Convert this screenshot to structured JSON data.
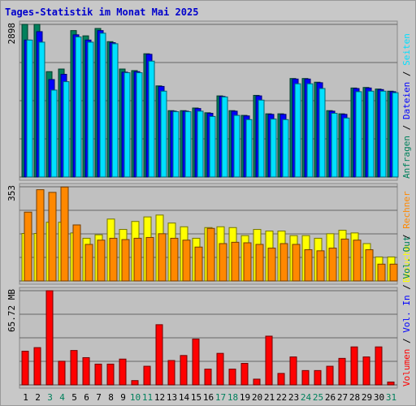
{
  "title": "Tages-Statistik im Monat Mai 2025",
  "colors": {
    "title": "#0000cc",
    "hits": "#00805c",
    "files": "#0000ff",
    "pages": "#00e0ff",
    "visits": "#ffff00",
    "sites": "#ff8800",
    "kbytes": "#ff0000",
    "grid": "#666666",
    "panel": "#c0c0c0",
    "weekend_label": "#00805c",
    "weekday_label": "#000000"
  },
  "chart_data": [
    {
      "type": "bar",
      "panel": "top",
      "ymax_label": "2898",
      "ylim": [
        0,
        2898
      ],
      "categories": [
        "1",
        "2",
        "3",
        "4",
        "5",
        "6",
        "7",
        "8",
        "9",
        "10",
        "11",
        "12",
        "13",
        "14",
        "15",
        "16",
        "17",
        "18",
        "19",
        "20",
        "21",
        "22",
        "23",
        "24",
        "25",
        "26",
        "27",
        "28",
        "29",
        "30",
        "31"
      ],
      "series": [
        {
          "name": "Anfragen",
          "color": "#00805c",
          "values": [
            2898,
            2898,
            2000,
            2050,
            2780,
            2680,
            2820,
            2570,
            2050,
            2020,
            2340,
            1730,
            1260,
            1260,
            1310,
            1220,
            1540,
            1260,
            1170,
            1550,
            1200,
            1200,
            1870,
            1870,
            1800,
            1260,
            1200,
            1690,
            1700,
            1670,
            1630
          ]
        },
        {
          "name": "Dateien",
          "color": "#0000ff",
          "values": [
            2600,
            2760,
            1850,
            1950,
            2700,
            2600,
            2780,
            2550,
            1990,
            2000,
            2330,
            1720,
            1250,
            1250,
            1300,
            1210,
            1530,
            1250,
            1160,
            1540,
            1190,
            1190,
            1860,
            1860,
            1790,
            1250,
            1190,
            1680,
            1690,
            1660,
            1620
          ]
        },
        {
          "name": "Seiten",
          "color": "#00e0ff",
          "values": [
            2600,
            2560,
            1650,
            1810,
            2660,
            2560,
            2730,
            2530,
            1980,
            1980,
            2200,
            1630,
            1240,
            1240,
            1250,
            1150,
            1520,
            1170,
            1090,
            1460,
            1100,
            1090,
            1770,
            1770,
            1680,
            1210,
            1120,
            1620,
            1630,
            1630,
            1600
          ]
        }
      ]
    },
    {
      "type": "bar",
      "panel": "middle",
      "ymax_label": "353",
      "ylim": [
        0,
        353
      ],
      "categories": [
        "1",
        "2",
        "3",
        "4",
        "5",
        "6",
        "7",
        "8",
        "9",
        "10",
        "11",
        "12",
        "13",
        "14",
        "15",
        "16",
        "17",
        "18",
        "19",
        "20",
        "21",
        "22",
        "23",
        "24",
        "25",
        "26",
        "27",
        "28",
        "29",
        "30",
        "31"
      ],
      "series": [
        {
          "name": "Besuche",
          "color": "#ffff00",
          "values": [
            178,
            178,
            220,
            220,
            180,
            160,
            173,
            232,
            193,
            223,
            240,
            247,
            217,
            203,
            160,
            200,
            203,
            200,
            170,
            193,
            187,
            187,
            170,
            170,
            160,
            177,
            190,
            180,
            140,
            90,
            90
          ]
        },
        {
          "name": "Rechner",
          "color": "#ff8800",
          "values": [
            258,
            342,
            332,
            352,
            210,
            137,
            153,
            160,
            155,
            160,
            163,
            177,
            160,
            153,
            127,
            197,
            140,
            145,
            143,
            137,
            123,
            140,
            137,
            117,
            113,
            123,
            157,
            153,
            117,
            63,
            63
          ]
        }
      ]
    },
    {
      "type": "bar",
      "panel": "bottom",
      "ymax_label": "65.72 MB",
      "ylim": [
        0,
        65.72
      ],
      "categories": [
        "1",
        "2",
        "3",
        "4",
        "5",
        "6",
        "7",
        "8",
        "9",
        "10",
        "11",
        "12",
        "13",
        "14",
        "15",
        "16",
        "17",
        "18",
        "19",
        "20",
        "21",
        "22",
        "23",
        "24",
        "25",
        "26",
        "27",
        "28",
        "29",
        "30",
        "31"
      ],
      "series": [
        {
          "name": "Volumen",
          "color": "#ff0000",
          "values": [
            23.5,
            26,
            65.72,
            16.5,
            24,
            19,
            14.5,
            14.5,
            18,
            3,
            13,
            42,
            17,
            20.5,
            32,
            11,
            22,
            11,
            15,
            4,
            34,
            8,
            19.5,
            10,
            10,
            13,
            18.5,
            26.5,
            19.5,
            26.5,
            2
          ]
        }
      ]
    }
  ],
  "legend": {
    "top": [
      {
        "label": "Anfragen",
        "color": "#00805c"
      },
      {
        "label": "Dateien",
        "color": "#0000ff"
      },
      {
        "label": "Seiten",
        "color": "#00e0ff"
      }
    ],
    "middle": [
      {
        "label": "Besuche",
        "color": "#ffff00"
      },
      {
        "label": "Rechner",
        "color": "#ff8800"
      }
    ],
    "bottom": [
      {
        "label": "Volumen",
        "color": "#ff0000"
      },
      {
        "label": "Vol. In",
        "color": "#0000ff"
      },
      {
        "label": "Vol. Out",
        "color": "#00805c"
      }
    ]
  },
  "weekend_days": [
    3,
    4,
    10,
    11,
    17,
    18,
    24,
    25,
    31
  ]
}
